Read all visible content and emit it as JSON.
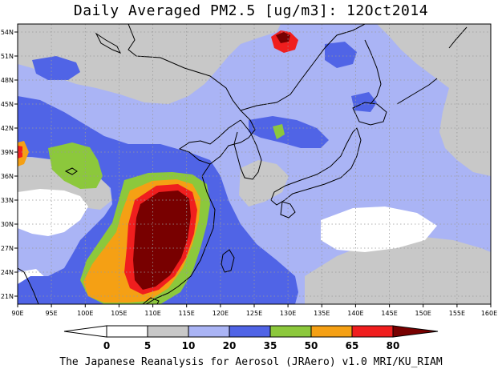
{
  "title": "Daily Averaged PM2.5 [ug/m3]: 12Oct2014",
  "footer": "The Japanese Reanalysis for Aerosol (JRAero) v1.0 MRI/KU_RIAM",
  "x_ticks": [
    "90E",
    "95E",
    "100E",
    "105E",
    "110E",
    "115E",
    "120E",
    "125E",
    "130E",
    "135E",
    "140E",
    "145E",
    "150E",
    "155E",
    "160E"
  ],
  "y_ticks": [
    "21N",
    "24N",
    "27N",
    "30N",
    "33N",
    "36N",
    "39N",
    "42N",
    "45N",
    "48N",
    "51N",
    "54N"
  ],
  "colorbar": {
    "levels": [
      "0",
      "5",
      "10",
      "20",
      "35",
      "50",
      "65",
      "80"
    ],
    "colors": [
      "#ffffff",
      "#c8c8c8",
      "#aab4f5",
      "#5064e6",
      "#8cc83c",
      "#f5a014",
      "#f01e1e",
      "#780000"
    ]
  },
  "field": {
    "variable": "PM2.5",
    "units": "ug/m3",
    "date": "12Oct2014",
    "lon_range": [
      90,
      160
    ],
    "lat_range": [
      20,
      55
    ]
  }
}
